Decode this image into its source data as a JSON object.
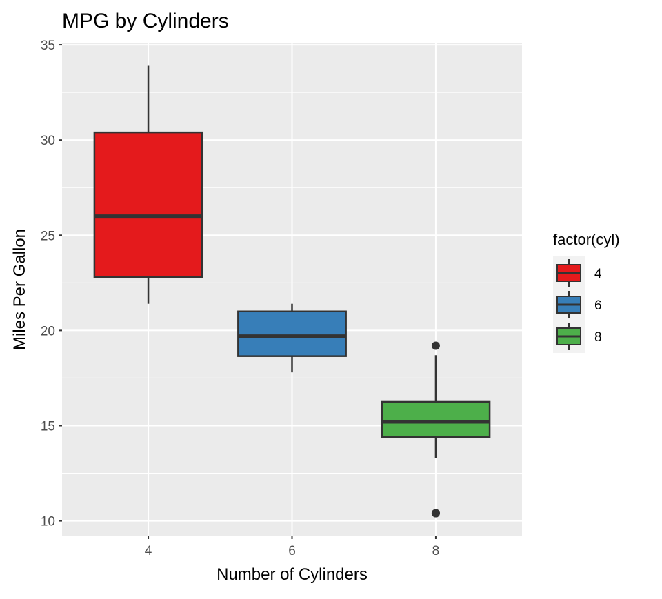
{
  "chart_data": {
    "type": "boxplot",
    "title": "MPG by Cylinders",
    "xlabel": "Number of Cylinders",
    "ylabel": "Miles Per Gallon",
    "categories": [
      "4",
      "6",
      "8"
    ],
    "ylim": [
      9.225,
      35.075
    ],
    "yticks": [
      10,
      15,
      20,
      25,
      30,
      35
    ],
    "grid": true,
    "legend": {
      "title": "factor(cyl)",
      "placement": "right",
      "entries": [
        "4",
        "6",
        "8"
      ]
    },
    "series": [
      {
        "name": "4",
        "color": "#E41A1C",
        "min": 21.4,
        "q1": 22.8,
        "median": 26.0,
        "q3": 30.4,
        "max": 33.9,
        "outliers": []
      },
      {
        "name": "6",
        "color": "#377EB8",
        "min": 17.8,
        "q1": 18.65,
        "median": 19.7,
        "q3": 21.0,
        "max": 21.4,
        "outliers": []
      },
      {
        "name": "8",
        "color": "#4DAF4A",
        "min": 13.3,
        "q1": 14.4,
        "median": 15.2,
        "q3": 16.25,
        "max": 18.7,
        "outliers": [
          10.4,
          10.4,
          19.2
        ]
      }
    ]
  }
}
